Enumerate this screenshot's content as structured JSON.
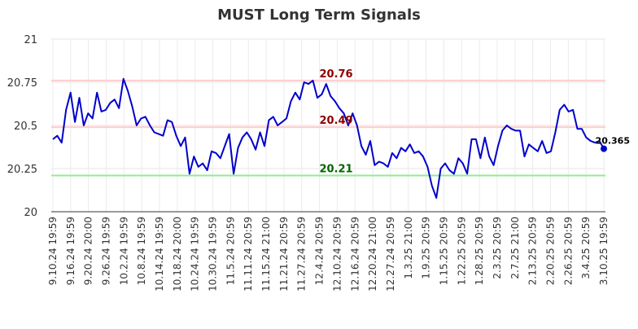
{
  "chart_data": {
    "type": "line",
    "title": "MUST Long Term Signals",
    "xlabel": "",
    "ylabel": "",
    "ylim": [
      20,
      21
    ],
    "yticks": [
      {
        "value": 20,
        "label": "20"
      },
      {
        "value": 20.25,
        "label": "20.25"
      },
      {
        "value": 20.5,
        "label": "20.5"
      },
      {
        "value": 20.75,
        "label": "20.75"
      },
      {
        "value": 21,
        "label": "21"
      }
    ],
    "x_tick_labels": [
      "9.10.24 19:59",
      "9.16.24 19:59",
      "9.20.24 20:00",
      "9.26.24 19:59",
      "10.2.24 19:59",
      "10.8.24 19:59",
      "10.14.24 19:59",
      "10.18.24 20:00",
      "10.24.24 19:59",
      "10.30.24 19:59",
      "11.5.24 20:59",
      "11.11.24 20:59",
      "11.15.24 21:00",
      "11.21.24 20:59",
      "11.27.24 20:59",
      "12.4.24 20:59",
      "12.10.24 20:59",
      "12.16.24 20:59",
      "12.20.24 21:00",
      "12.27.24 20:59",
      "1.3.25 21:00",
      "1.9.25 20:59",
      "1.15.25 20:59",
      "1.22.25 20:59",
      "1.28.25 20:59",
      "2.3.25 20:59",
      "2.7.25 21:00",
      "2.13.25 20:59",
      "2.20.25 20:59",
      "2.26.25 20:59",
      "3.4.25 20:59",
      "3.10.25 19:59"
    ],
    "grid": true,
    "series": [
      {
        "name": "",
        "color": "#0000cc",
        "values": [
          20.42,
          20.44,
          20.4,
          20.59,
          20.69,
          20.52,
          20.66,
          20.5,
          20.57,
          20.54,
          20.69,
          20.58,
          20.59,
          20.63,
          20.65,
          20.6,
          20.77,
          20.7,
          20.61,
          20.5,
          20.54,
          20.55,
          20.5,
          20.46,
          20.45,
          20.44,
          20.53,
          20.52,
          20.44,
          20.38,
          20.43,
          20.22,
          20.32,
          20.26,
          20.28,
          20.24,
          20.35,
          20.34,
          20.31,
          20.38,
          20.45,
          20.22,
          20.37,
          20.43,
          20.46,
          20.42,
          20.36,
          20.46,
          20.38,
          20.53,
          20.55,
          20.5,
          20.52,
          20.54,
          20.64,
          20.69,
          20.65,
          20.75,
          20.74,
          20.76,
          20.66,
          20.68,
          20.74,
          20.67,
          20.64,
          20.6,
          20.57,
          20.5,
          20.57,
          20.5,
          20.38,
          20.33,
          20.41,
          20.27,
          20.29,
          20.28,
          20.26,
          20.34,
          20.31,
          20.37,
          20.35,
          20.39,
          20.34,
          20.35,
          20.32,
          20.26,
          20.15,
          20.08,
          20.25,
          20.28,
          20.24,
          20.22,
          20.31,
          20.28,
          20.22,
          20.42,
          20.42,
          20.31,
          20.43,
          20.32,
          20.27,
          20.38,
          20.47,
          20.5,
          20.48,
          20.47,
          20.47,
          20.32,
          20.39,
          20.37,
          20.35,
          20.41,
          20.34,
          20.35,
          20.46,
          20.59,
          20.62,
          20.58,
          20.59,
          20.48,
          20.48,
          20.43,
          20.41,
          20.4,
          20.41,
          20.365
        ],
        "last_value_label": "20.365"
      }
    ],
    "signal_lines": [
      {
        "value": 20.76,
        "label": "20.76",
        "line_color": "#ffcccc",
        "text_color": "#8b0000"
      },
      {
        "value": 20.49,
        "label": "20.49",
        "line_color": "#ffcccc",
        "text_color": "#8b0000"
      },
      {
        "value": 20.21,
        "label": "20.21",
        "line_color": "#90ee90",
        "text_color": "#006400"
      }
    ]
  }
}
